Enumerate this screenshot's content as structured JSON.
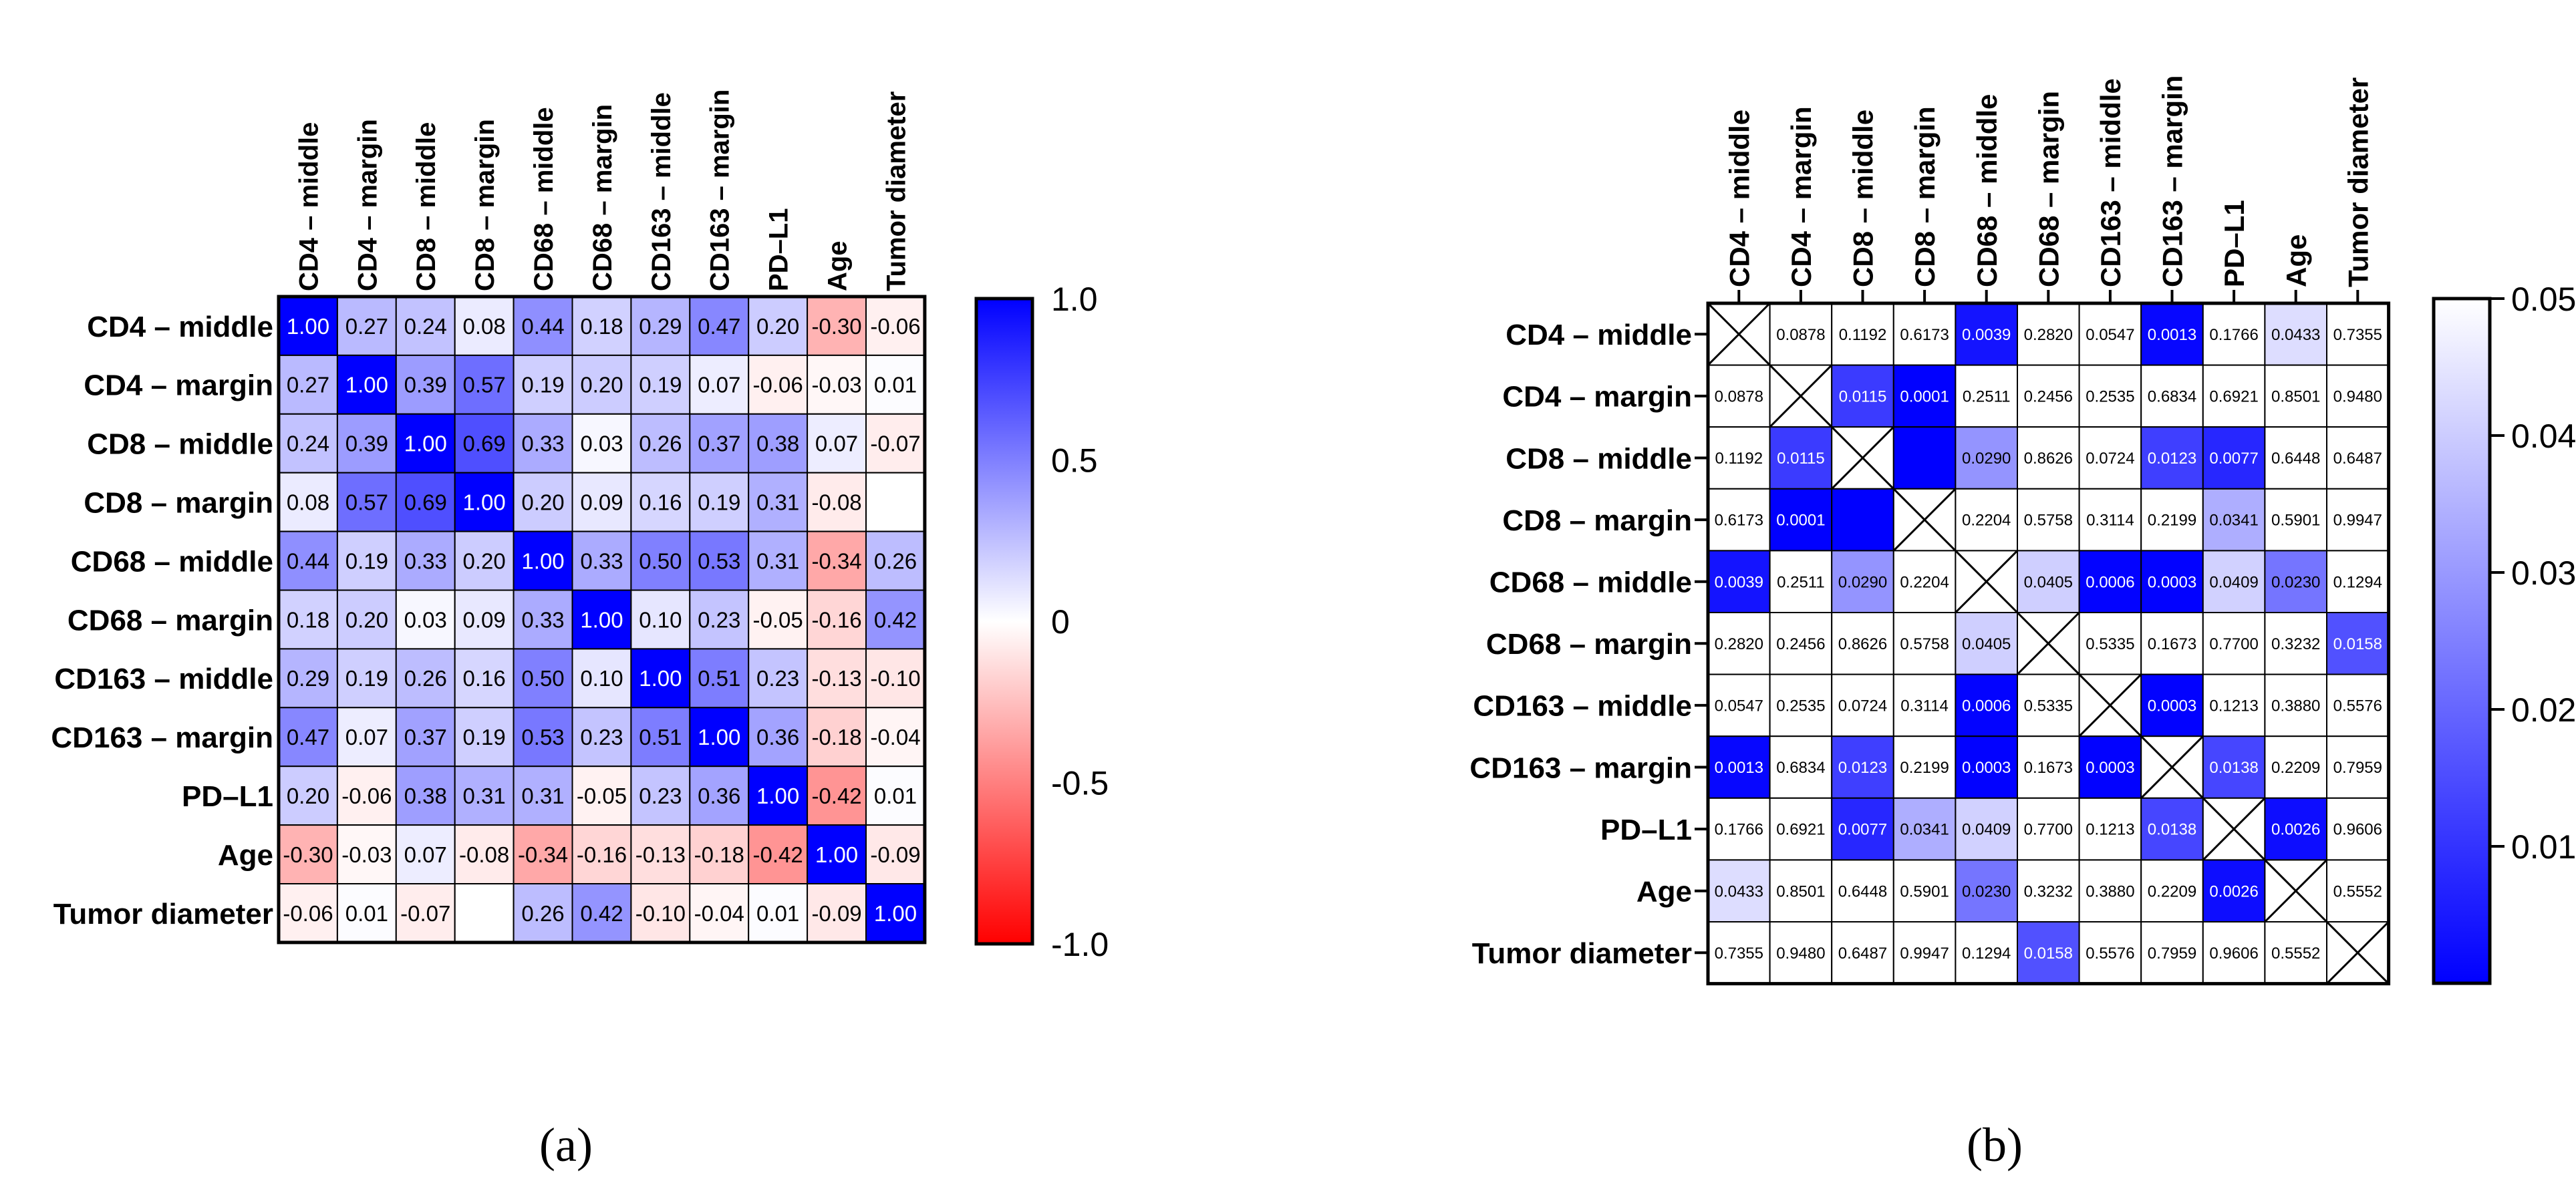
{
  "chart_data": [
    {
      "type": "heatmap",
      "panel": "a",
      "variables": [
        "CD4 – middle",
        "CD4 – margin",
        "CD8 – middle",
        "CD8 – margin",
        "CD68 – middle",
        "CD68 – margin",
        "CD163 – middle",
        "CD163 – margin",
        "PD–L1",
        "Age",
        "Tumor diameter"
      ],
      "matrix": [
        [
          "1.00",
          "0.27",
          "0.24",
          "0.08",
          "0.44",
          "0.18",
          "0.29",
          "0.47",
          "0.20",
          "-0.30",
          "-0.06"
        ],
        [
          "0.27",
          "1.00",
          "0.39",
          "0.57",
          "0.19",
          "0.20",
          "0.19",
          "0.07",
          "-0.06",
          "-0.03",
          "0.01"
        ],
        [
          "0.24",
          "0.39",
          "1.00",
          "0.69",
          "0.33",
          "0.03",
          "0.26",
          "0.37",
          "0.38",
          "0.07",
          "-0.07"
        ],
        [
          "0.08",
          "0.57",
          "0.69",
          "1.00",
          "0.20",
          "0.09",
          "0.16",
          "0.19",
          "0.31",
          "-0.08",
          ""
        ],
        [
          "0.44",
          "0.19",
          "0.33",
          "0.20",
          "1.00",
          "0.33",
          "0.50",
          "0.53",
          "0.31",
          "-0.34",
          "0.26"
        ],
        [
          "0.18",
          "0.20",
          "0.03",
          "0.09",
          "0.33",
          "1.00",
          "0.10",
          "0.23",
          "-0.05",
          "-0.16",
          "0.42"
        ],
        [
          "0.29",
          "0.19",
          "0.26",
          "0.16",
          "0.50",
          "0.10",
          "1.00",
          "0.51",
          "0.23",
          "-0.13",
          "-0.10"
        ],
        [
          "0.47",
          "0.07",
          "0.37",
          "0.19",
          "0.53",
          "0.23",
          "0.51",
          "1.00",
          "0.36",
          "-0.18",
          "-0.04"
        ],
        [
          "0.20",
          "-0.06",
          "0.38",
          "0.31",
          "0.31",
          "-0.05",
          "0.23",
          "0.36",
          "1.00",
          "-0.42",
          "0.01"
        ],
        [
          "-0.30",
          "-0.03",
          "0.07",
          "-0.08",
          "-0.34",
          "-0.16",
          "-0.13",
          "-0.18",
          "-0.42",
          "1.00",
          "-0.09"
        ],
        [
          "-0.06",
          "0.01",
          "-0.07",
          "",
          "0.26",
          "0.42",
          "-0.10",
          "-0.04",
          "0.01",
          "-0.09",
          "1.00"
        ]
      ],
      "colorbar": {
        "range": [
          -1,
          1
        ],
        "ticks": [
          "1.0",
          "0.5",
          "0",
          "-0.5",
          "-1.0"
        ],
        "colors": [
          "#0000ff",
          "#ffffff",
          "#ff0000"
        ]
      },
      "label": "(a)"
    },
    {
      "type": "heatmap",
      "panel": "b",
      "variables": [
        "CD4 – middle",
        "CD4 – margin",
        "CD8 – middle",
        "CD8 – margin",
        "CD68 – middle",
        "CD68 – margin",
        "CD163 – middle",
        "CD163 – margin",
        "PD–L1",
        "Age",
        "Tumor diameter"
      ],
      "matrix": [
        [
          "X",
          "0.0878",
          "0.1192",
          "0.6173",
          "0.0039",
          "0.2820",
          "0.0547",
          "0.0013",
          "0.1766",
          "0.0433",
          "0.7355"
        ],
        [
          "0.0878",
          "X",
          "0.0115",
          "0.0001",
          "0.2511",
          "0.2456",
          "0.2535",
          "0.6834",
          "0.6921",
          "0.8501",
          "0.9480"
        ],
        [
          "0.1192",
          "0.0115",
          "X",
          "",
          "0.0290",
          "0.8626",
          "0.0724",
          "0.0123",
          "0.0077",
          "0.6448",
          "0.6487"
        ],
        [
          "0.6173",
          "0.0001",
          "",
          "X",
          "0.2204",
          "0.5758",
          "0.3114",
          "0.2199",
          "0.0341",
          "0.5901",
          "0.9947"
        ],
        [
          "0.0039",
          "0.2511",
          "0.0290",
          "0.2204",
          "X",
          "0.0405",
          "0.0006",
          "0.0003",
          "0.0409",
          "0.0230",
          "0.1294"
        ],
        [
          "0.2820",
          "0.2456",
          "0.8626",
          "0.5758",
          "0.0405",
          "X",
          "0.5335",
          "0.1673",
          "0.7700",
          "0.3232",
          "0.0158"
        ],
        [
          "0.0547",
          "0.2535",
          "0.0724",
          "0.3114",
          "0.0006",
          "0.5335",
          "X",
          "0.0003",
          "0.1213",
          "0.3880",
          "0.5576"
        ],
        [
          "0.0013",
          "0.6834",
          "0.0123",
          "0.2199",
          "0.0003",
          "0.1673",
          "0.0003",
          "X",
          "0.0138",
          "0.2209",
          "0.7959"
        ],
        [
          "0.1766",
          "0.6921",
          "0.0077",
          "0.0341",
          "0.0409",
          "0.7700",
          "0.1213",
          "0.0138",
          "X",
          "0.0026",
          "0.9606"
        ],
        [
          "0.0433",
          "0.8501",
          "0.6448",
          "0.5901",
          "0.0230",
          "0.3232",
          "0.3880",
          "0.2209",
          "0.0026",
          "X",
          "0.5552"
        ],
        [
          "0.7355",
          "0.9480",
          "0.6487",
          "0.9947",
          "0.1294",
          "0.0158",
          "0.5576",
          "0.7959",
          "0.9606",
          "0.5552",
          "X"
        ]
      ],
      "colorbar": {
        "range": [
          0,
          0.05
        ],
        "ticks": [
          "0.05",
          "0.04",
          "0.03",
          "0.02",
          "0.01"
        ],
        "colors": [
          "#0000ff",
          "#ffffff"
        ]
      },
      "label": "(b)"
    }
  ]
}
